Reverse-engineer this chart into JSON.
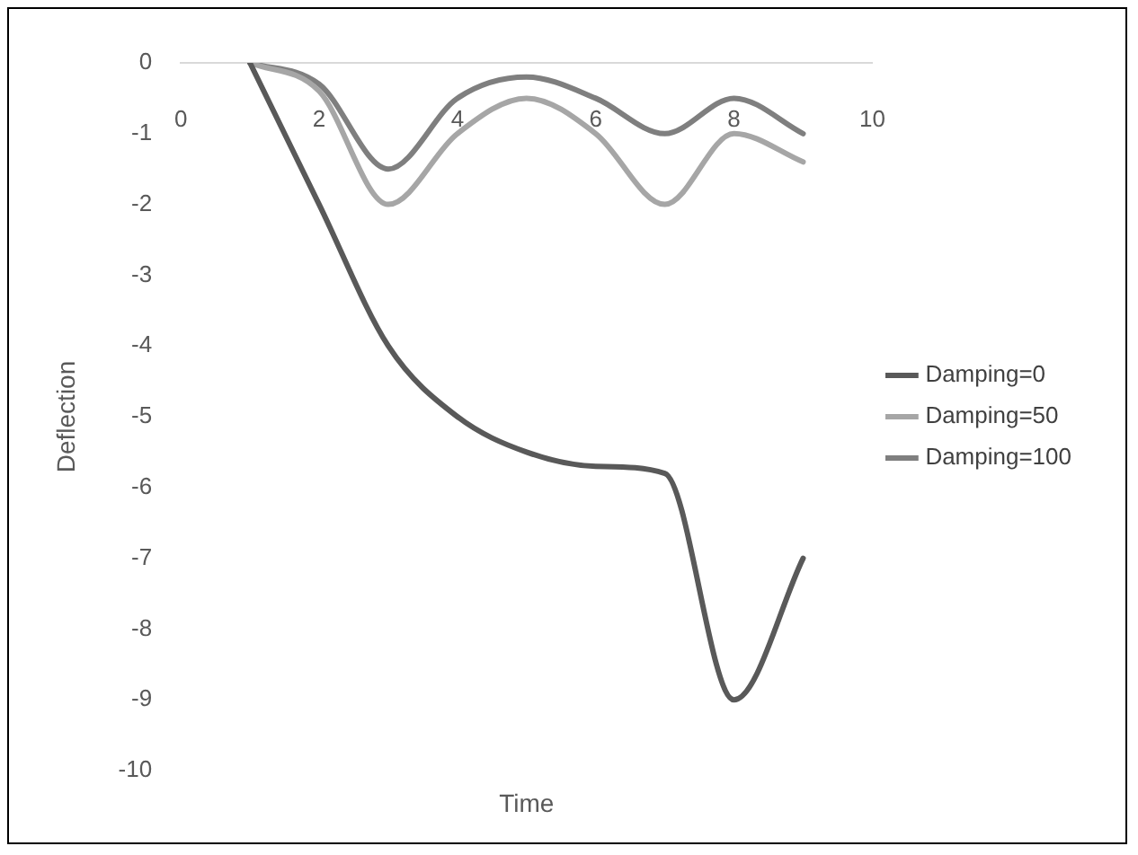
{
  "chart_data": {
    "type": "line",
    "xlabel": "Time",
    "ylabel": "Deflection",
    "x": [
      1,
      2,
      3,
      4,
      5,
      6,
      7,
      8,
      9
    ],
    "series": [
      {
        "name": "Damping=0",
        "color": "#595959",
        "values": [
          0,
          -2,
          -4,
          -5,
          -5.5,
          -5.7,
          -5.8,
          -9,
          -7
        ]
      },
      {
        "name": "Damping=50",
        "color": "#a6a6a6",
        "values": [
          0,
          -0.4,
          -2,
          -1,
          -0.5,
          -1,
          -2,
          -1,
          -1.4
        ]
      },
      {
        "name": "Damping=100",
        "color": "#7f7f7f",
        "values": [
          0,
          -0.3,
          -1.5,
          -0.5,
          -0.2,
          -0.5,
          -1,
          -0.5,
          -1
        ]
      }
    ],
    "xlim": [
      0,
      10
    ],
    "xticks": [
      0,
      2,
      4,
      6,
      8,
      10
    ],
    "ylim": [
      -10,
      0
    ],
    "yticks": [
      -10,
      -9,
      -8,
      -7,
      -6,
      -5,
      -4,
      -3,
      -2,
      -1,
      0
    ],
    "grid": false,
    "legend": "right",
    "marker": "none",
    "line_style": "solid"
  }
}
